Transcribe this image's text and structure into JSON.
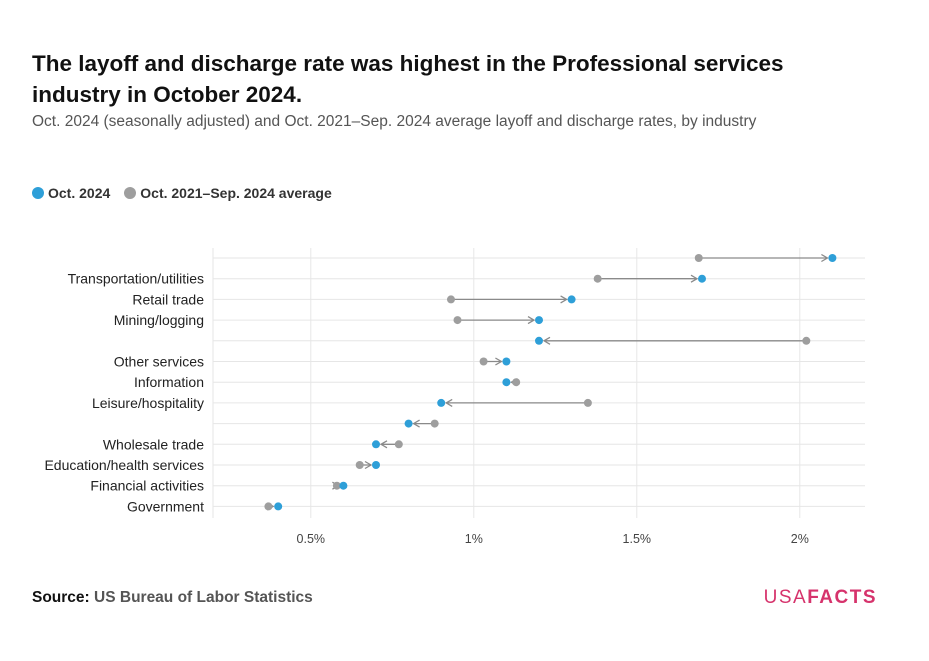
{
  "header": {
    "title": "The layoff and discharge rate was highest in the Professional services industry in October 2024.",
    "subtitle": "Oct. 2024 (seasonally adjusted) and Oct. 2021–Sep. 2024 average layoff and discharge rates, by industry"
  },
  "footer": {
    "source_label": "Source:",
    "source_text": "US Bureau of Labor Statistics",
    "brand_part1": "USA",
    "brand_part2": "FACTS"
  },
  "colors": {
    "current": "#2e9fd8",
    "average": "#9e9e9e",
    "grid": "#e6e6e6",
    "brand": "#d6336c"
  },
  "chart_data": {
    "type": "dot-arrow",
    "x_unit": "%",
    "xlim": [
      0.2,
      2.2
    ],
    "x_ticks": [
      0.5,
      1.0,
      1.5,
      2.0
    ],
    "x_tick_labels": [
      "0.5%",
      "1%",
      "1.5%",
      "2%"
    ],
    "grid": true,
    "legend_position": "top-left",
    "series": [
      {
        "name": "Oct. 2024",
        "key": "current"
      },
      {
        "name": "Oct. 2021–Sep. 2024 average",
        "key": "average"
      }
    ],
    "categories": [
      {
        "label": "",
        "current": 2.1,
        "average": 1.69
      },
      {
        "label": "Transportation/utilities",
        "current": 1.7,
        "average": 1.38
      },
      {
        "label": "Retail trade",
        "current": 1.3,
        "average": 0.93
      },
      {
        "label": "Mining/logging",
        "current": 1.2,
        "average": 0.95
      },
      {
        "label": "",
        "current": 1.2,
        "average": 2.02
      },
      {
        "label": "Other services",
        "current": 1.1,
        "average": 1.03
      },
      {
        "label": "Information",
        "current": 1.1,
        "average": 1.13
      },
      {
        "label": "Leisure/hospitality",
        "current": 0.9,
        "average": 1.35
      },
      {
        "label": "",
        "current": 0.8,
        "average": 0.88
      },
      {
        "label": "Wholesale trade",
        "current": 0.7,
        "average": 0.77
      },
      {
        "label": "Education/health services",
        "current": 0.7,
        "average": 0.65
      },
      {
        "label": "Financial activities",
        "current": 0.6,
        "average": 0.58
      },
      {
        "label": "Government",
        "current": 0.4,
        "average": 0.37
      }
    ]
  }
}
